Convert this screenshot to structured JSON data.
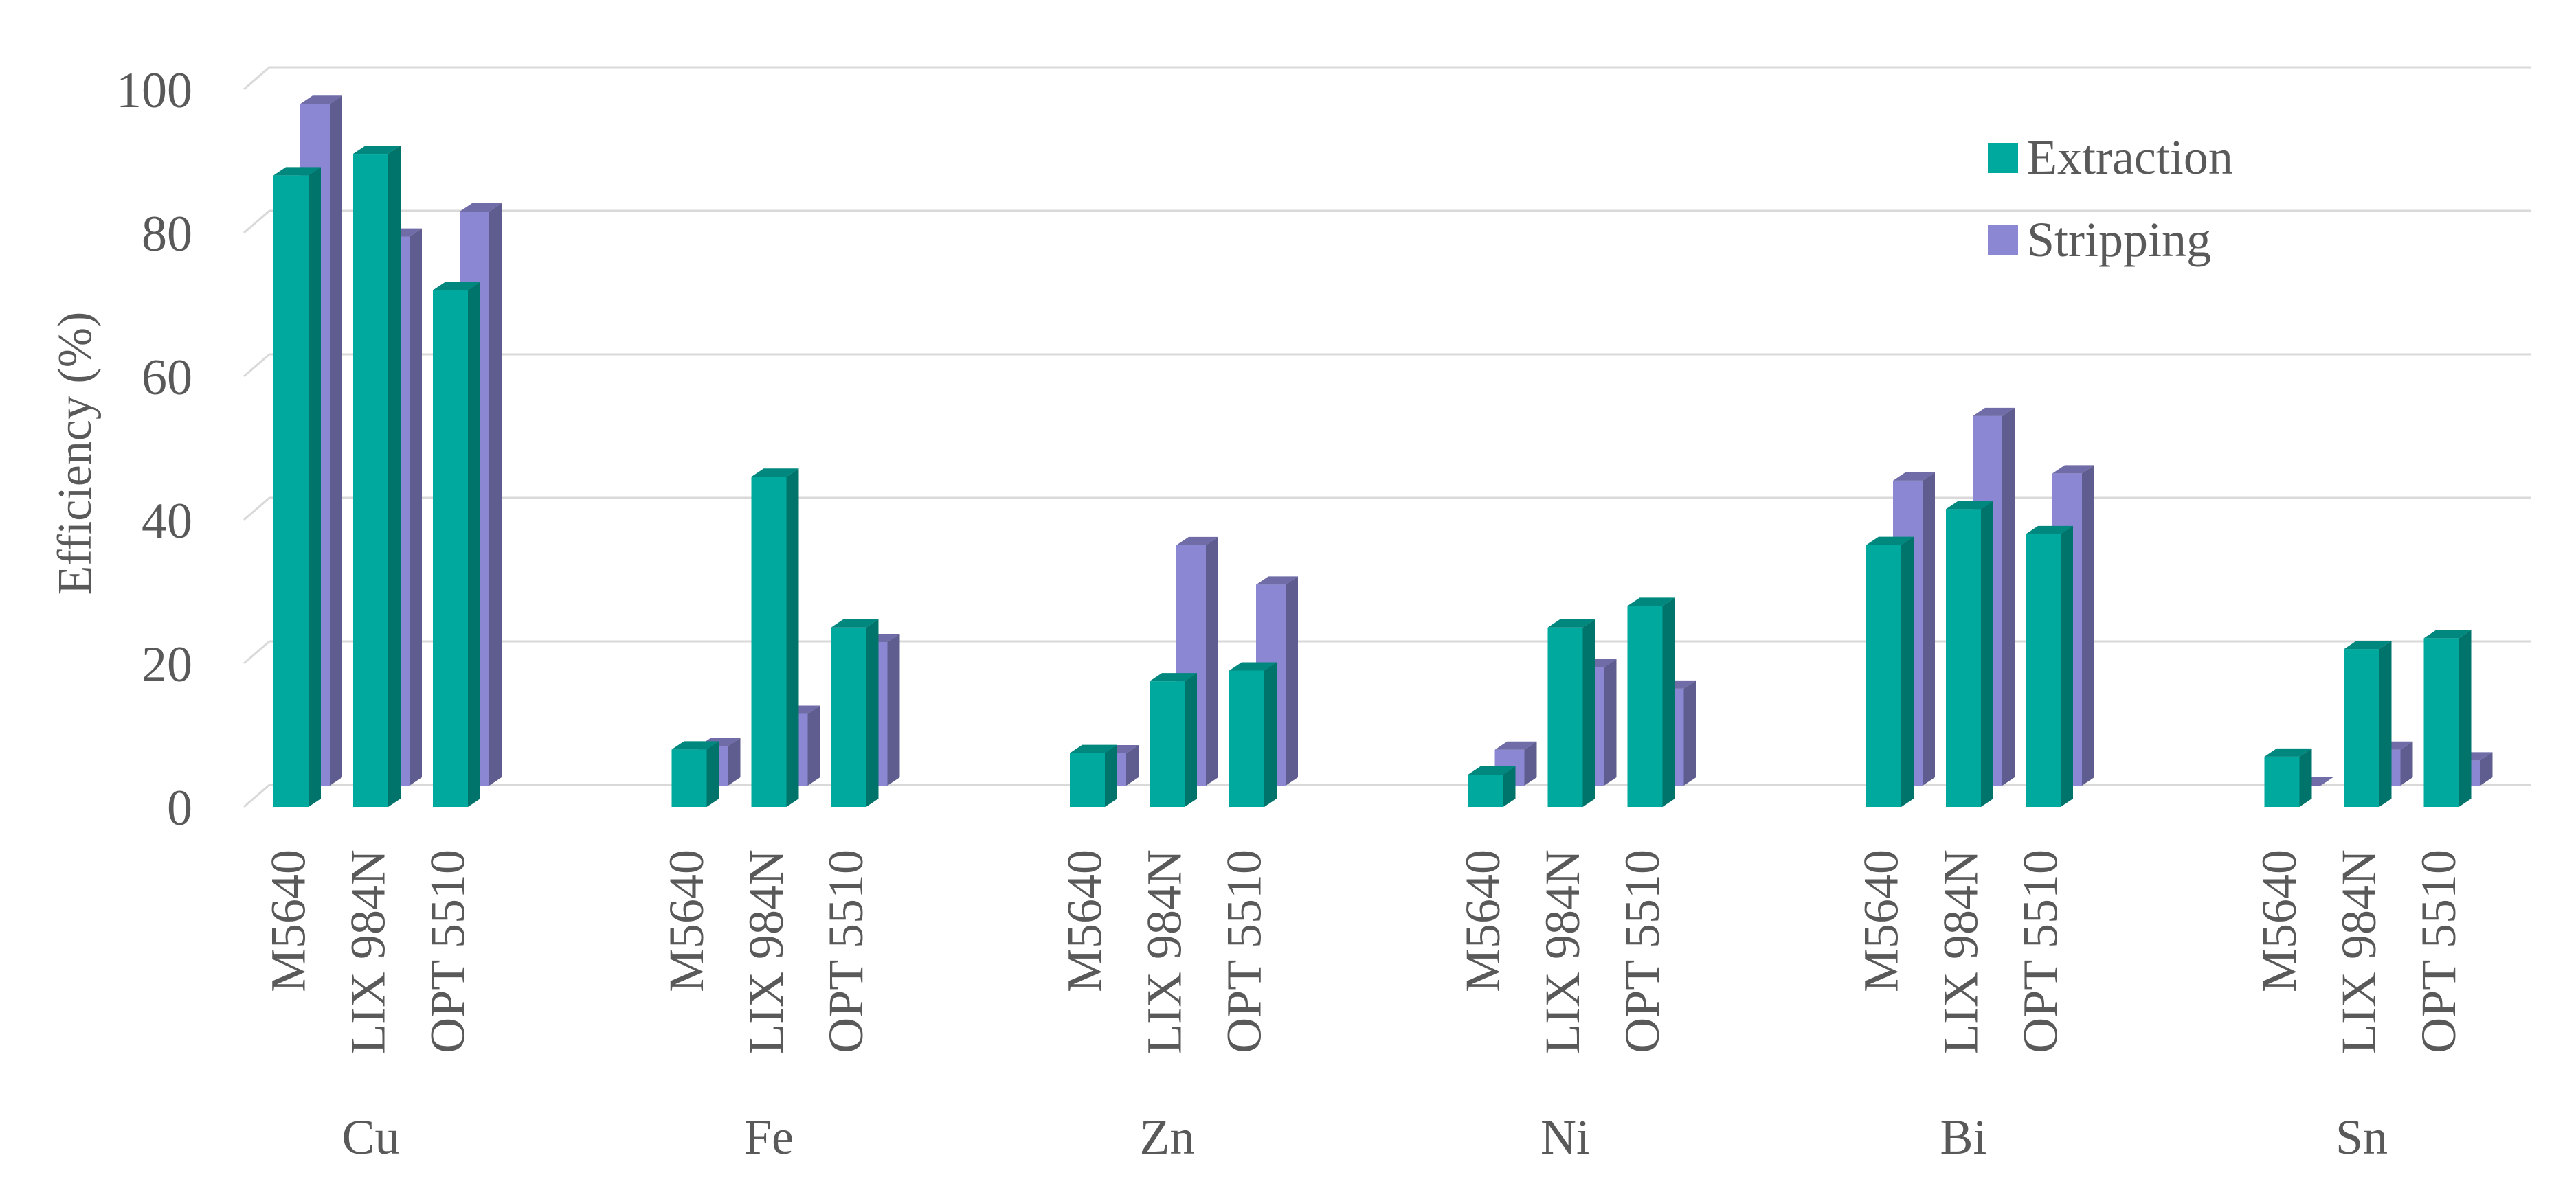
{
  "chart_data": {
    "type": "bar",
    "style": "3d-clustered",
    "title": "",
    "xlabel": "",
    "ylabel": "Efficiency (%)",
    "ylim": [
      0,
      100
    ],
    "yticks": [
      0,
      20,
      40,
      60,
      80,
      100
    ],
    "grid": true,
    "legend_position": "top-right",
    "groups": [
      "Cu",
      "Fe",
      "Zn",
      "Ni",
      "Bi",
      "Sn"
    ],
    "extractants": [
      "M5640",
      "LIX 984N",
      "OPT 5510"
    ],
    "series": [
      {
        "name": "Extraction",
        "color": "#00A99D",
        "values": [
          [
            88,
            91,
            72
          ],
          [
            8,
            46,
            25
          ],
          [
            7.5,
            17.5,
            19
          ],
          [
            4.5,
            25,
            28
          ],
          [
            36.5,
            41.5,
            38
          ],
          [
            7,
            22,
            23.5
          ]
        ]
      },
      {
        "name": "Stripping",
        "color": "#8B87D2",
        "values": [
          [
            95,
            76.5,
            80
          ],
          [
            5.5,
            10,
            20
          ],
          [
            4.5,
            33.5,
            28
          ],
          [
            5,
            16.5,
            13.5
          ],
          [
            42.5,
            51.5,
            43.5
          ],
          [
            0,
            5,
            3.5
          ]
        ]
      }
    ]
  }
}
